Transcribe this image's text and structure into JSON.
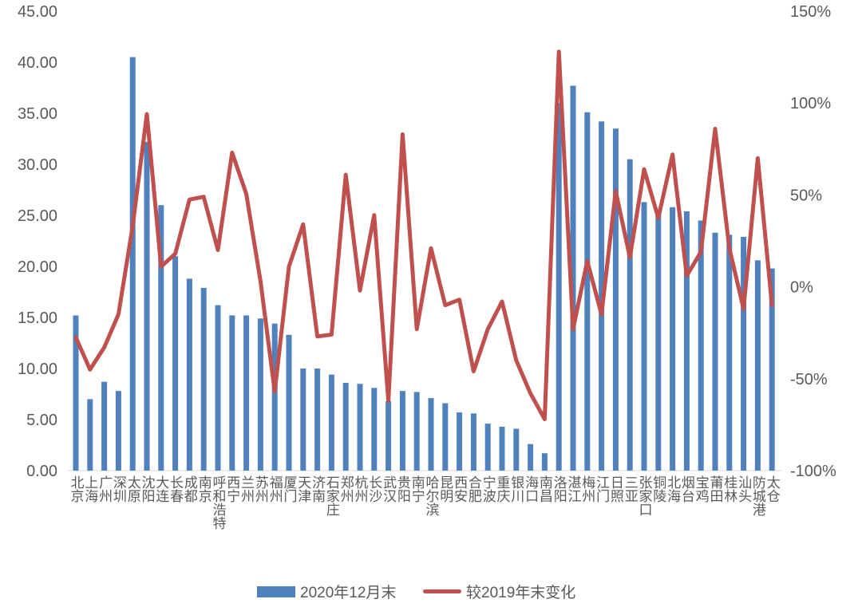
{
  "chart_data": {
    "type": "bar+line",
    "categories": [
      "北京",
      "上海",
      "广州",
      "深圳",
      "太原",
      "沈阳",
      "大连",
      "长春",
      "成都",
      "南京",
      "呼和浩特",
      "西宁",
      "兰州",
      "苏州",
      "福州",
      "厦门",
      "天津",
      "济南",
      "石家庄",
      "郑州",
      "杭州",
      "长沙",
      "武汉",
      "贵阳",
      "南宁",
      "哈尔滨",
      "昆明",
      "西安",
      "合肥",
      "宁波",
      "重庆",
      "银川",
      "海口",
      "南昌",
      "洛阳",
      "湛江",
      "梅州",
      "江门",
      "日照",
      "三亚",
      "张家口",
      "铜陵",
      "北海",
      "烟台",
      "宝鸡",
      "莆田",
      "桂林",
      "汕头",
      "防城港",
      "太仓"
    ],
    "series": [
      {
        "name": "2020年12月末",
        "type": "bar",
        "axis": "left",
        "color": "#4f81bd",
        "values": [
          15.2,
          7.0,
          8.7,
          7.8,
          40.5,
          32.2,
          26.0,
          21.0,
          18.8,
          17.9,
          16.2,
          15.2,
          15.2,
          14.9,
          14.4,
          13.3,
          10.0,
          10.0,
          9.4,
          8.6,
          8.5,
          8.1,
          6.8,
          7.8,
          7.7,
          7.1,
          6.6,
          5.7,
          5.6,
          4.6,
          4.3,
          4.1,
          2.6,
          1.7,
          36.0,
          37.7,
          35.1,
          34.2,
          33.5,
          30.5,
          26.3,
          25.5,
          25.8,
          25.4,
          24.5,
          23.3,
          23.1,
          22.9,
          20.6,
          19.8
        ]
      },
      {
        "name": "较2019年末变化",
        "type": "line",
        "axis": "right",
        "unit": "%",
        "color": "#c0504d",
        "values": [
          -27.6,
          -45,
          -33,
          -15,
          33,
          94,
          11,
          18,
          47.5,
          49,
          20,
          73,
          50.5,
          3,
          -57,
          11,
          34,
          -27,
          -26,
          61,
          -2,
          39,
          -62,
          83,
          -23,
          21,
          -10,
          -7,
          -46,
          -23,
          -8,
          -40,
          -58,
          -72,
          128,
          -23,
          14,
          -15,
          52,
          16,
          64,
          37.5,
          72,
          6,
          19,
          86,
          21,
          -12,
          70,
          -10
        ]
      }
    ],
    "ylim_left": [
      0,
      45
    ],
    "ylim_right": [
      -100,
      150
    ],
    "yticks_left": [
      "0.00",
      "5.00",
      "10.00",
      "15.00",
      "20.00",
      "25.00",
      "30.00",
      "35.00",
      "40.00",
      "45.00"
    ],
    "yticks_right": [
      "-100%",
      "-50%",
      "0%",
      "50%",
      "100%",
      "150%"
    ],
    "grid": false,
    "legend_position": "bottom"
  }
}
